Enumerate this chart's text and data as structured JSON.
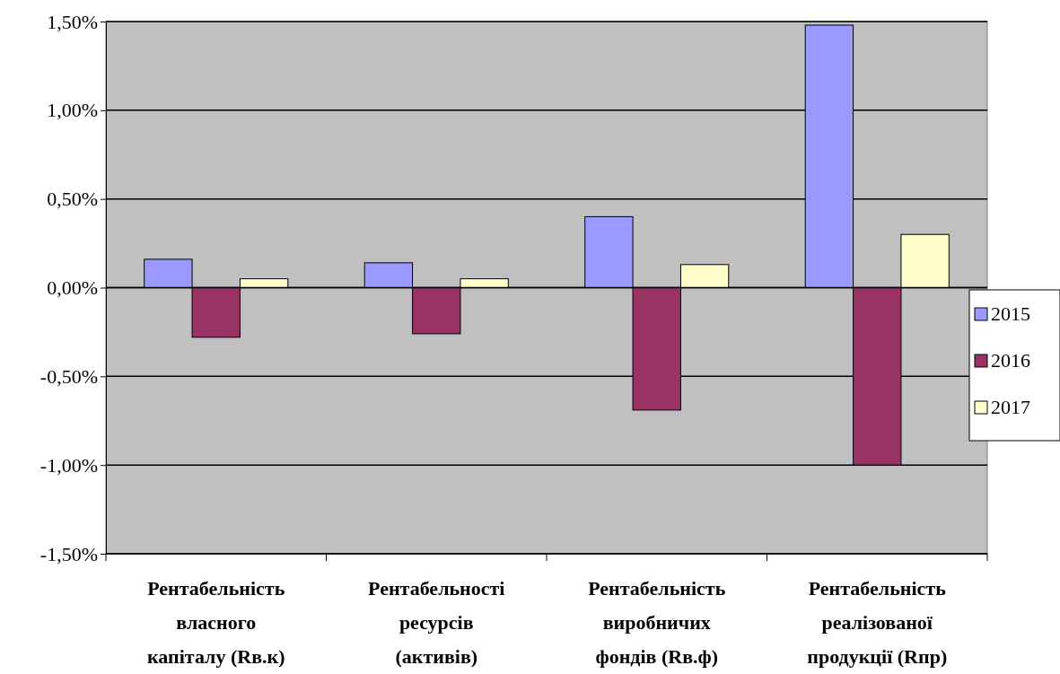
{
  "chart_data": {
    "type": "bar",
    "categories": [
      "Рентабельність\nвласного\nкапіталу (Rв.к)",
      "Рентабельності\nресурсів\n(активів)",
      "Рентабельність\nвиробничих\nфондів (Rв.ф)",
      "Рентабельність\nреалізованої\nпродукції (Rпр)"
    ],
    "series": [
      {
        "name": "2015",
        "color": "#9999ff",
        "values": [
          0.16,
          0.14,
          0.4,
          1.48
        ]
      },
      {
        "name": "2016",
        "color": "#993366",
        "values": [
          -0.28,
          -0.26,
          -0.69,
          -1.0
        ]
      },
      {
        "name": "2017",
        "color": "#ffffcc",
        "values": [
          0.05,
          0.05,
          0.13,
          0.3
        ]
      }
    ],
    "ylim": [
      -1.5,
      1.5
    ],
    "yticks": [
      {
        "value": -1.5,
        "label": "-1,50%"
      },
      {
        "value": -1,
        "label": "-1,00%"
      },
      {
        "value": -0.5,
        "label": "-0,50%"
      },
      {
        "value": 0,
        "label": "0,00%"
      },
      {
        "value": 0.5,
        "label": "0,50%"
      },
      {
        "value": 1,
        "label": "1,00%"
      },
      {
        "value": 1.5,
        "label": "1,50%"
      }
    ],
    "grid": "y",
    "legend": "right"
  }
}
